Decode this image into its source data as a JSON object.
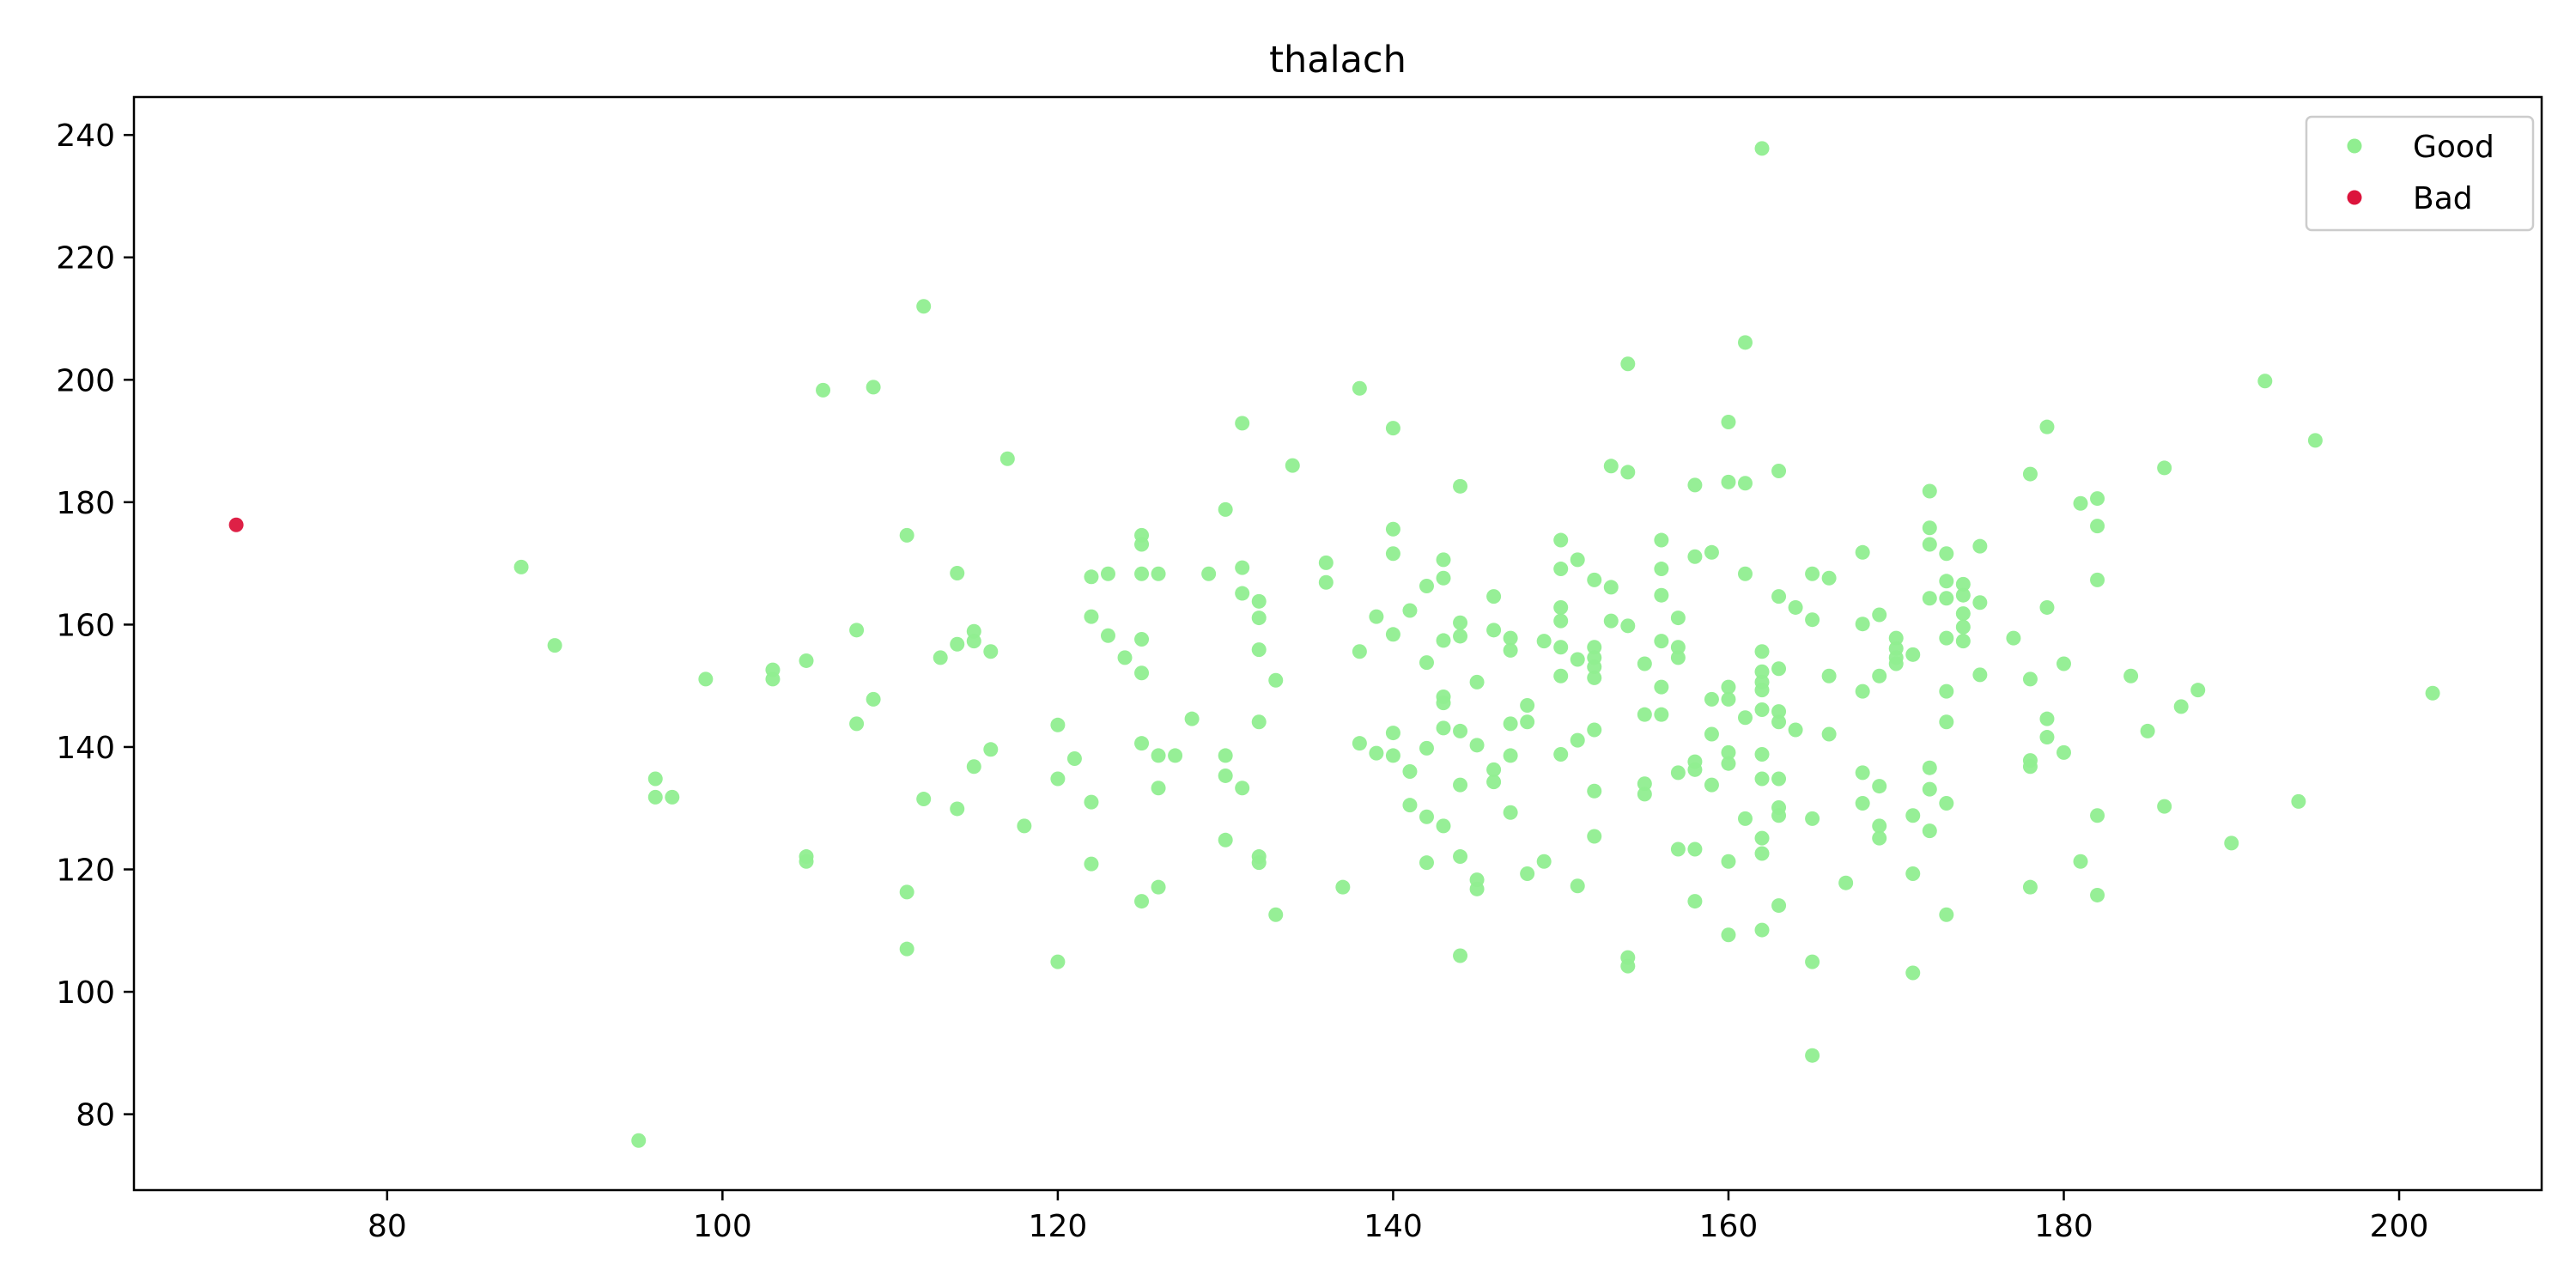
{
  "chart_data": {
    "type": "scatter",
    "title": "thalach",
    "xlabel": "",
    "ylabel": "",
    "xlim": [
      64.9,
      208.5
    ],
    "ylim": [
      67.6,
      246.2
    ],
    "xticks": [
      80,
      100,
      120,
      140,
      160,
      180,
      200
    ],
    "yticks": [
      80,
      100,
      120,
      140,
      160,
      180,
      200,
      220,
      240
    ],
    "grid": false,
    "legend": "top-right",
    "series": [
      {
        "name": "Good",
        "color": "#90ee90",
        "points": [
          [
            88,
            169.4
          ],
          [
            90,
            156.6
          ],
          [
            95,
            75.7
          ],
          [
            96,
            134.8
          ],
          [
            96,
            131.8
          ],
          [
            97,
            131.8
          ],
          [
            99,
            151.1
          ],
          [
            103,
            152.6
          ],
          [
            103,
            151.1
          ],
          [
            105,
            154.1
          ],
          [
            105,
            122.1
          ],
          [
            105,
            121.3
          ],
          [
            106,
            198.3
          ],
          [
            108,
            159.1
          ],
          [
            108,
            143.8
          ],
          [
            109,
            198.8
          ],
          [
            109,
            147.8
          ],
          [
            111,
            174.6
          ],
          [
            111,
            116.3
          ],
          [
            111,
            107.0
          ],
          [
            112,
            212.0
          ],
          [
            112,
            131.5
          ],
          [
            113,
            154.6
          ],
          [
            114,
            168.4
          ],
          [
            114,
            156.8
          ],
          [
            114,
            129.9
          ],
          [
            115,
            158.9
          ],
          [
            115,
            157.3
          ],
          [
            115,
            136.8
          ],
          [
            116,
            155.6
          ],
          [
            116,
            139.6
          ],
          [
            117,
            187.1
          ],
          [
            118,
            127.1
          ],
          [
            120,
            143.6
          ],
          [
            120,
            134.8
          ],
          [
            120,
            104.9
          ],
          [
            121,
            138.1
          ],
          [
            122,
            167.8
          ],
          [
            122,
            161.3
          ],
          [
            122,
            131.0
          ],
          [
            122,
            120.9
          ],
          [
            123,
            168.3
          ],
          [
            123,
            158.2
          ],
          [
            124,
            154.6
          ],
          [
            125,
            174.6
          ],
          [
            125,
            173.1
          ],
          [
            125,
            168.3
          ],
          [
            125,
            157.6
          ],
          [
            125,
            152.1
          ],
          [
            125,
            140.6
          ],
          [
            125,
            114.8
          ],
          [
            126,
            168.3
          ],
          [
            126,
            138.6
          ],
          [
            126,
            133.3
          ],
          [
            126,
            117.1
          ],
          [
            127,
            138.6
          ],
          [
            128,
            144.6
          ],
          [
            129,
            168.3
          ],
          [
            130,
            178.8
          ],
          [
            130,
            138.6
          ],
          [
            130,
            135.3
          ],
          [
            130,
            124.8
          ],
          [
            131,
            192.9
          ],
          [
            131,
            169.3
          ],
          [
            131,
            165.1
          ],
          [
            131,
            133.3
          ],
          [
            132,
            163.8
          ],
          [
            132,
            161.1
          ],
          [
            132,
            155.9
          ],
          [
            132,
            144.1
          ],
          [
            132,
            122.1
          ],
          [
            132,
            121.1
          ],
          [
            133,
            150.9
          ],
          [
            133,
            112.6
          ],
          [
            134,
            186.0
          ],
          [
            136,
            170.1
          ],
          [
            136,
            166.9
          ],
          [
            137,
            117.1
          ],
          [
            138,
            198.6
          ],
          [
            138,
            155.6
          ],
          [
            138,
            140.6
          ],
          [
            139,
            161.3
          ],
          [
            139,
            139.0
          ],
          [
            140,
            192.1
          ],
          [
            140,
            175.6
          ],
          [
            140,
            171.6
          ],
          [
            140,
            158.4
          ],
          [
            140,
            142.3
          ],
          [
            140,
            138.6
          ],
          [
            141,
            162.3
          ],
          [
            141,
            136.0
          ],
          [
            141,
            130.5
          ],
          [
            142,
            166.3
          ],
          [
            142,
            153.8
          ],
          [
            142,
            139.8
          ],
          [
            142,
            128.6
          ],
          [
            142,
            121.1
          ],
          [
            143,
            170.6
          ],
          [
            143,
            167.6
          ],
          [
            143,
            157.4
          ],
          [
            143,
            148.2
          ],
          [
            143,
            147.2
          ],
          [
            143,
            143.1
          ],
          [
            143,
            127.1
          ],
          [
            144,
            182.6
          ],
          [
            144,
            160.3
          ],
          [
            144,
            158.1
          ],
          [
            144,
            142.6
          ],
          [
            144,
            133.8
          ],
          [
            144,
            122.1
          ],
          [
            144,
            105.9
          ],
          [
            145,
            150.6
          ],
          [
            145,
            140.3
          ],
          [
            145,
            118.3
          ],
          [
            145,
            116.8
          ],
          [
            146,
            164.6
          ],
          [
            146,
            159.1
          ],
          [
            146,
            136.3
          ],
          [
            146,
            134.3
          ],
          [
            147,
            157.8
          ],
          [
            147,
            155.8
          ],
          [
            147,
            143.8
          ],
          [
            147,
            138.6
          ],
          [
            147,
            129.3
          ],
          [
            148,
            146.8
          ],
          [
            148,
            144.1
          ],
          [
            148,
            119.3
          ],
          [
            149,
            157.3
          ],
          [
            149,
            121.3
          ],
          [
            150,
            173.8
          ],
          [
            150,
            169.1
          ],
          [
            150,
            162.8
          ],
          [
            150,
            160.6
          ],
          [
            150,
            156.3
          ],
          [
            150,
            151.6
          ],
          [
            150,
            138.8
          ],
          [
            151,
            170.6
          ],
          [
            151,
            154.3
          ],
          [
            151,
            141.1
          ],
          [
            151,
            117.3
          ],
          [
            152,
            167.3
          ],
          [
            152,
            156.3
          ],
          [
            152,
            154.6
          ],
          [
            152,
            153.1
          ],
          [
            152,
            151.3
          ],
          [
            152,
            142.8
          ],
          [
            152,
            132.8
          ],
          [
            152,
            125.4
          ],
          [
            153,
            185.9
          ],
          [
            153,
            166.1
          ],
          [
            153,
            160.6
          ],
          [
            154,
            202.6
          ],
          [
            154,
            184.9
          ],
          [
            154,
            159.8
          ],
          [
            154,
            105.6
          ],
          [
            154,
            104.2
          ],
          [
            155,
            153.6
          ],
          [
            155,
            145.3
          ],
          [
            155,
            134.0
          ],
          [
            155,
            132.3
          ],
          [
            156,
            173.8
          ],
          [
            156,
            169.1
          ],
          [
            156,
            164.8
          ],
          [
            156,
            157.3
          ],
          [
            156,
            149.8
          ],
          [
            156,
            145.3
          ],
          [
            157,
            161.1
          ],
          [
            157,
            156.3
          ],
          [
            157,
            154.6
          ],
          [
            157,
            135.8
          ],
          [
            157,
            123.3
          ],
          [
            158,
            182.8
          ],
          [
            158,
            171.1
          ],
          [
            158,
            137.6
          ],
          [
            158,
            136.3
          ],
          [
            158,
            123.3
          ],
          [
            158,
            114.8
          ],
          [
            159,
            171.8
          ],
          [
            159,
            147.8
          ],
          [
            159,
            142.1
          ],
          [
            159,
            133.8
          ],
          [
            160,
            193.1
          ],
          [
            160,
            183.3
          ],
          [
            160,
            149.8
          ],
          [
            160,
            147.8
          ],
          [
            160,
            139.1
          ],
          [
            160,
            137.3
          ],
          [
            160,
            121.3
          ],
          [
            160,
            109.3
          ],
          [
            161,
            206.1
          ],
          [
            161,
            183.1
          ],
          [
            161,
            168.3
          ],
          [
            161,
            144.8
          ],
          [
            161,
            128.3
          ],
          [
            162,
            237.8
          ],
          [
            162,
            155.6
          ],
          [
            162,
            152.3
          ],
          [
            162,
            150.6
          ],
          [
            162,
            149.3
          ],
          [
            162,
            146.1
          ],
          [
            162,
            138.8
          ],
          [
            162,
            134.8
          ],
          [
            162,
            125.1
          ],
          [
            162,
            122.6
          ],
          [
            162,
            110.1
          ],
          [
            163,
            185.1
          ],
          [
            163,
            164.6
          ],
          [
            163,
            152.8
          ],
          [
            163,
            145.8
          ],
          [
            163,
            144.1
          ],
          [
            163,
            134.8
          ],
          [
            163,
            130.1
          ],
          [
            163,
            128.8
          ],
          [
            163,
            114.1
          ],
          [
            164,
            162.8
          ],
          [
            164,
            142.8
          ],
          [
            165,
            168.3
          ],
          [
            165,
            160.8
          ],
          [
            165,
            128.3
          ],
          [
            165,
            104.9
          ],
          [
            165,
            89.6
          ],
          [
            166,
            167.6
          ],
          [
            166,
            151.6
          ],
          [
            166,
            142.1
          ],
          [
            167,
            117.8
          ],
          [
            168,
            171.8
          ],
          [
            168,
            160.1
          ],
          [
            168,
            149.1
          ],
          [
            168,
            135.8
          ],
          [
            168,
            130.8
          ],
          [
            169,
            161.6
          ],
          [
            169,
            151.6
          ],
          [
            169,
            133.6
          ],
          [
            169,
            127.1
          ],
          [
            169,
            125.1
          ],
          [
            170,
            157.8
          ],
          [
            170,
            156.1
          ],
          [
            170,
            154.6
          ],
          [
            170,
            153.6
          ],
          [
            171,
            155.1
          ],
          [
            171,
            128.8
          ],
          [
            171,
            119.3
          ],
          [
            171,
            103.1
          ],
          [
            172,
            181.8
          ],
          [
            172,
            175.8
          ],
          [
            172,
            173.1
          ],
          [
            172,
            164.3
          ],
          [
            172,
            136.6
          ],
          [
            172,
            133.1
          ],
          [
            172,
            126.3
          ],
          [
            173,
            171.6
          ],
          [
            173,
            167.1
          ],
          [
            173,
            164.3
          ],
          [
            173,
            157.8
          ],
          [
            173,
            149.1
          ],
          [
            173,
            144.1
          ],
          [
            173,
            130.8
          ],
          [
            173,
            112.6
          ],
          [
            174,
            166.6
          ],
          [
            174,
            164.8
          ],
          [
            174,
            161.8
          ],
          [
            174,
            159.6
          ],
          [
            174,
            157.3
          ],
          [
            175,
            172.8
          ],
          [
            175,
            163.6
          ],
          [
            175,
            151.8
          ],
          [
            177,
            157.8
          ],
          [
            178,
            184.6
          ],
          [
            178,
            151.1
          ],
          [
            178,
            137.8
          ],
          [
            178,
            136.8
          ],
          [
            178,
            117.1
          ],
          [
            179,
            192.3
          ],
          [
            179,
            162.8
          ],
          [
            179,
            144.6
          ],
          [
            179,
            141.6
          ],
          [
            180,
            153.6
          ],
          [
            180,
            139.1
          ],
          [
            181,
            179.8
          ],
          [
            181,
            121.3
          ],
          [
            182,
            180.6
          ],
          [
            182,
            176.1
          ],
          [
            182,
            167.3
          ],
          [
            182,
            128.8
          ],
          [
            182,
            115.8
          ],
          [
            184,
            151.6
          ],
          [
            185,
            142.6
          ],
          [
            186,
            185.6
          ],
          [
            186,
            130.3
          ],
          [
            187,
            146.6
          ],
          [
            188,
            149.3
          ],
          [
            190,
            124.3
          ],
          [
            192,
            199.8
          ],
          [
            194,
            131.1
          ],
          [
            195,
            190.1
          ],
          [
            202,
            148.8
          ]
        ]
      },
      {
        "name": "Bad",
        "color": "#dc143c",
        "points": [
          [
            71,
            176.3
          ]
        ]
      }
    ]
  }
}
